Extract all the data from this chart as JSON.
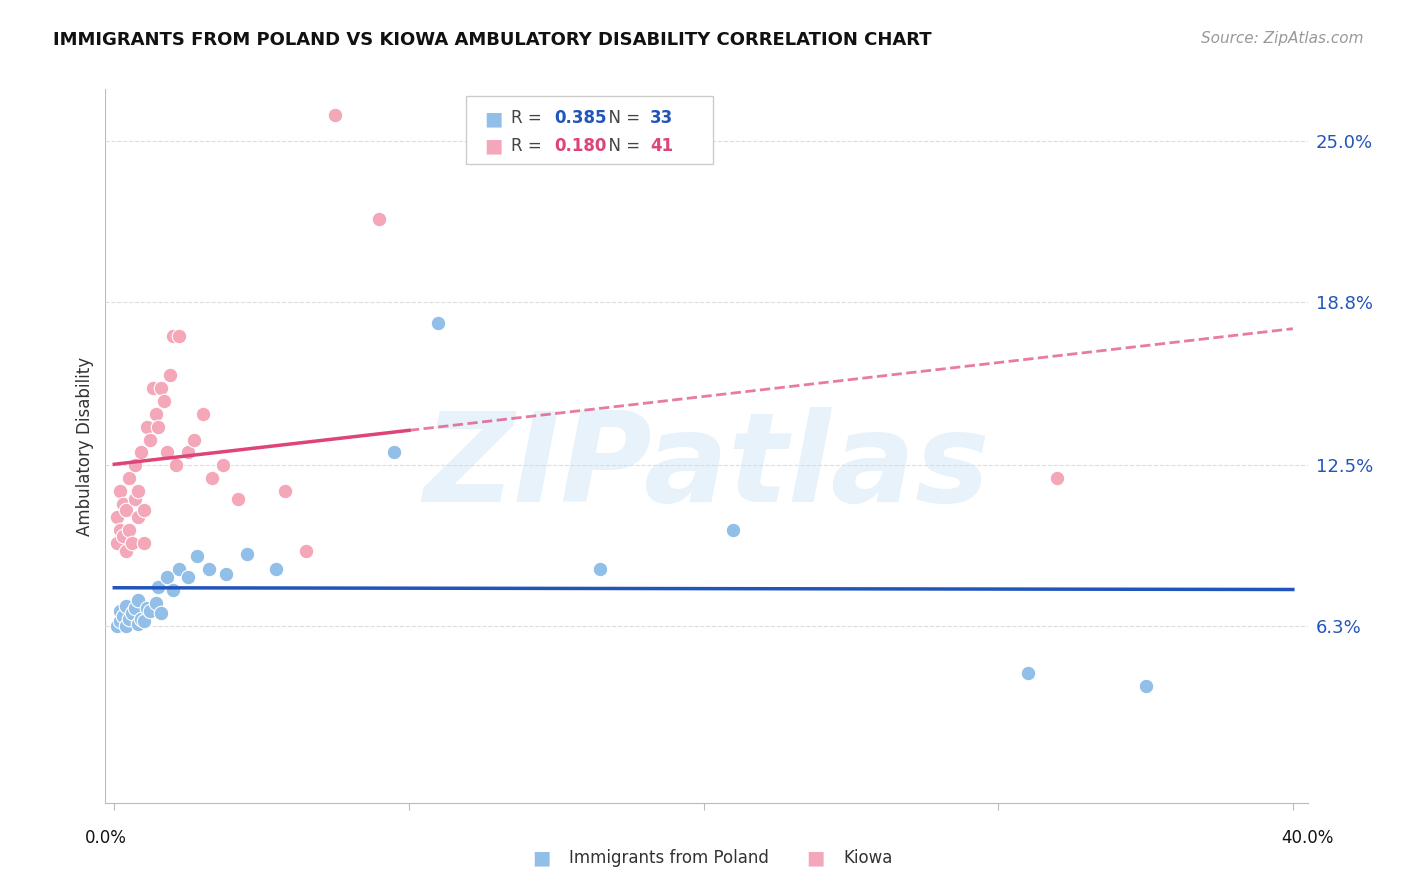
{
  "title": "IMMIGRANTS FROM POLAND VS KIOWA AMBULATORY DISABILITY CORRELATION CHART",
  "source": "Source: ZipAtlas.com",
  "ylabel": "Ambulatory Disability",
  "yticks": [
    0.063,
    0.125,
    0.188,
    0.25
  ],
  "ytick_labels": [
    "6.3%",
    "12.5%",
    "18.8%",
    "25.0%"
  ],
  "xlim": [
    -0.003,
    0.405
  ],
  "ylim": [
    -0.005,
    0.27
  ],
  "blue_R": 0.385,
  "blue_N": 33,
  "pink_R": 0.18,
  "pink_N": 41,
  "blue_color": "#92bfe8",
  "pink_color": "#f4a7b9",
  "blue_trend_color": "#2255bb",
  "pink_trend_color": "#dd4477",
  "legend_label_blue": "Immigrants from Poland",
  "legend_label_pink": "Kiowa",
  "watermark": "ZIPatlas",
  "blue_scatter_x": [
    0.001,
    0.002,
    0.002,
    0.003,
    0.004,
    0.004,
    0.005,
    0.006,
    0.007,
    0.008,
    0.008,
    0.009,
    0.01,
    0.011,
    0.012,
    0.014,
    0.015,
    0.016,
    0.018,
    0.02,
    0.022,
    0.025,
    0.028,
    0.032,
    0.038,
    0.045,
    0.055,
    0.095,
    0.11,
    0.165,
    0.21,
    0.31,
    0.35
  ],
  "blue_scatter_y": [
    0.063,
    0.065,
    0.069,
    0.067,
    0.063,
    0.071,
    0.066,
    0.068,
    0.07,
    0.064,
    0.073,
    0.066,
    0.065,
    0.07,
    0.069,
    0.072,
    0.078,
    0.068,
    0.082,
    0.077,
    0.085,
    0.082,
    0.09,
    0.085,
    0.083,
    0.091,
    0.085,
    0.13,
    0.18,
    0.085,
    0.1,
    0.045,
    0.04
  ],
  "pink_scatter_x": [
    0.001,
    0.001,
    0.002,
    0.002,
    0.003,
    0.003,
    0.004,
    0.004,
    0.005,
    0.005,
    0.006,
    0.007,
    0.007,
    0.008,
    0.008,
    0.009,
    0.01,
    0.01,
    0.011,
    0.012,
    0.013,
    0.014,
    0.015,
    0.016,
    0.017,
    0.018,
    0.019,
    0.02,
    0.021,
    0.022,
    0.025,
    0.027,
    0.03,
    0.033,
    0.037,
    0.042,
    0.058,
    0.065,
    0.075,
    0.09,
    0.32
  ],
  "pink_scatter_y": [
    0.095,
    0.105,
    0.1,
    0.115,
    0.098,
    0.11,
    0.092,
    0.108,
    0.1,
    0.12,
    0.095,
    0.112,
    0.125,
    0.105,
    0.115,
    0.13,
    0.095,
    0.108,
    0.14,
    0.135,
    0.155,
    0.145,
    0.14,
    0.155,
    0.15,
    0.13,
    0.16,
    0.175,
    0.125,
    0.175,
    0.13,
    0.135,
    0.145,
    0.12,
    0.125,
    0.112,
    0.115,
    0.092,
    0.26,
    0.22,
    0.12
  ]
}
